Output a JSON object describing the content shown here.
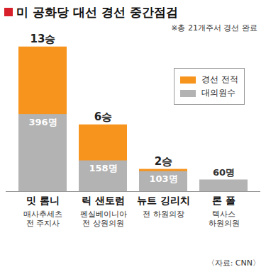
{
  "chart_data": {
    "type": "bar",
    "title": "미 공화당 대선 경선 중간점검",
    "subtitle": "※총 21개주서 경선 완료",
    "source": "〈자료: CNN〉",
    "categories": [
      "밋 롬니",
      "릭 샌토럼",
      "뉴트 깅리치",
      "론 폴"
    ],
    "category_descriptions": [
      [
        "매사추세츠",
        "전 주지사"
      ],
      [
        "펜실베이니아",
        "전 상원의원"
      ],
      [
        "전 하원의장"
      ],
      [
        "텍사스",
        "하원의원"
      ]
    ],
    "series": [
      {
        "name": "경선 전적",
        "color": "#f7941d",
        "values": [
          13,
          6,
          2,
          0
        ],
        "value_labels": [
          "13승",
          "6승",
          "2승",
          null
        ]
      },
      {
        "name": "대의원수",
        "color": "#b3b3b3",
        "axis": "y2",
        "values": [
          396,
          158,
          103,
          60
        ],
        "value_labels": [
          "396명",
          "158명",
          "103명",
          "60명"
        ]
      }
    ],
    "ylim": [
      0,
      14
    ],
    "y2lim": [
      0,
      800
    ],
    "tick_labels": false,
    "data_labels": true,
    "legend": "top-right",
    "grid": false
  }
}
